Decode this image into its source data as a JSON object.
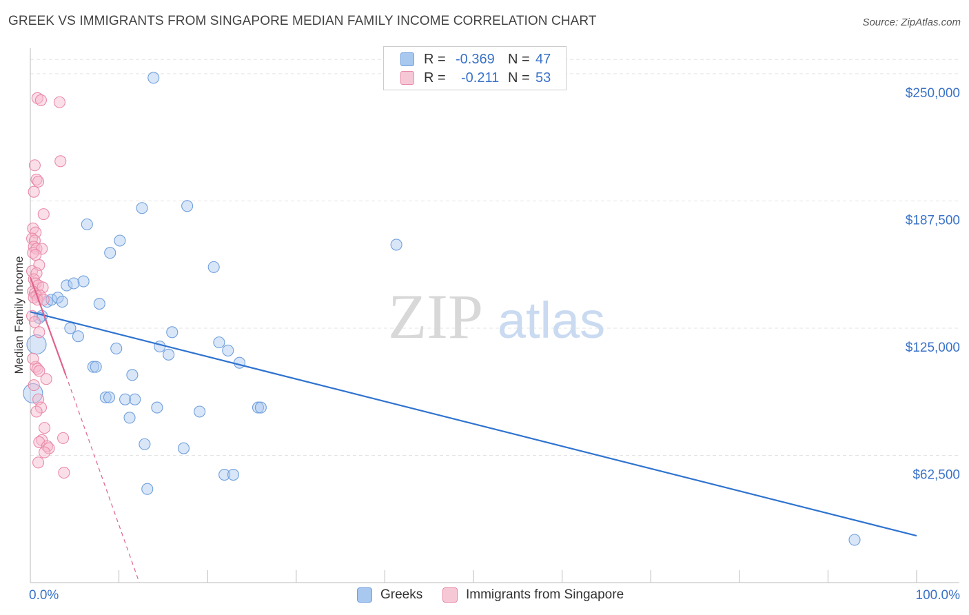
{
  "title": "GREEK VS IMMIGRANTS FROM SINGAPORE MEDIAN FAMILY INCOME CORRELATION CHART",
  "source": "Source: ZipAtlas.com",
  "watermark": {
    "zip": "ZIP",
    "atlas": "atlas"
  },
  "legend": {
    "series": [
      {
        "r_label": "R =",
        "r_value": "-0.369",
        "n_label": "N =",
        "n_value": "47"
      },
      {
        "r_label": "R =",
        "r_value": "-0.211",
        "n_label": "N =",
        "n_value": "53"
      }
    ]
  },
  "bottom_legend": [
    "Greeks",
    "Immigrants from Singapore"
  ],
  "colors": {
    "blue_fill": "#a9c8f0",
    "blue_stroke": "#6f9fdc",
    "blue_line": "#2f73cf",
    "pink_fill": "#f6b8cb",
    "pink_stroke": "#e98aa8",
    "pink_line": "#e0638b",
    "tick_text": "#3a72c8",
    "grid": "#e3e3e3"
  },
  "chart_data": {
    "type": "scatter",
    "title": "GREEK VS IMMIGRANTS FROM SINGAPORE MEDIAN FAMILY INCOME CORRELATION CHART",
    "xlabel": "",
    "ylabel": "Median Family Income",
    "xlim": [
      0,
      100
    ],
    "ylim": [
      0,
      262500
    ],
    "x_tick_labels": [
      "0.0%",
      "100.0%"
    ],
    "y_ticks": [
      62500,
      125000,
      187500,
      250000
    ],
    "y_tick_labels": [
      "$62,500",
      "$125,000",
      "$187,500",
      "$250,000"
    ],
    "grid": true,
    "series": [
      {
        "name": "Greeks",
        "r": -0.369,
        "n": 47,
        "trend": {
          "x": [
            0,
            100
          ],
          "y": [
            133000,
            23000
          ]
        },
        "points": [
          {
            "x": 13.9,
            "y": 248000
          },
          {
            "x": 12.6,
            "y": 184000
          },
          {
            "x": 17.7,
            "y": 185000
          },
          {
            "x": 6.4,
            "y": 176000
          },
          {
            "x": 10.1,
            "y": 168000
          },
          {
            "x": 9.0,
            "y": 162000
          },
          {
            "x": 20.7,
            "y": 155000
          },
          {
            "x": 41.3,
            "y": 166000
          },
          {
            "x": 4.1,
            "y": 146000
          },
          {
            "x": 4.9,
            "y": 147000
          },
          {
            "x": 6.0,
            "y": 148000
          },
          {
            "x": 1.9,
            "y": 138000
          },
          {
            "x": 2.4,
            "y": 139000
          },
          {
            "x": 3.1,
            "y": 140000
          },
          {
            "x": 3.6,
            "y": 138000
          },
          {
            "x": 7.8,
            "y": 137000
          },
          {
            "x": 1.3,
            "y": 131000
          },
          {
            "x": 4.5,
            "y": 125000
          },
          {
            "x": 5.4,
            "y": 121000
          },
          {
            "x": 16.0,
            "y": 123000
          },
          {
            "x": 0.7,
            "y": 117000,
            "big": true
          },
          {
            "x": 9.7,
            "y": 115000
          },
          {
            "x": 14.6,
            "y": 116000
          },
          {
            "x": 21.3,
            "y": 118000
          },
          {
            "x": 22.3,
            "y": 114000
          },
          {
            "x": 15.6,
            "y": 112000
          },
          {
            "x": 23.6,
            "y": 108000
          },
          {
            "x": 7.1,
            "y": 106000
          },
          {
            "x": 7.4,
            "y": 106000
          },
          {
            "x": 11.5,
            "y": 102000
          },
          {
            "x": 0.3,
            "y": 93000,
            "big": true
          },
          {
            "x": 8.5,
            "y": 91000
          },
          {
            "x": 8.9,
            "y": 91000
          },
          {
            "x": 10.7,
            "y": 90000
          },
          {
            "x": 11.8,
            "y": 90000
          },
          {
            "x": 14.3,
            "y": 86000
          },
          {
            "x": 25.7,
            "y": 86000
          },
          {
            "x": 26.0,
            "y": 86000
          },
          {
            "x": 19.1,
            "y": 84000
          },
          {
            "x": 11.2,
            "y": 81000
          },
          {
            "x": 12.9,
            "y": 68000
          },
          {
            "x": 17.3,
            "y": 66000
          },
          {
            "x": 21.9,
            "y": 53000
          },
          {
            "x": 22.9,
            "y": 53000
          },
          {
            "x": 13.2,
            "y": 46000
          },
          {
            "x": 93.0,
            "y": 21000
          },
          {
            "x": 1.0,
            "y": 130000
          }
        ]
      },
      {
        "name": "Immigrants from Singapore",
        "r": -0.211,
        "n": 53,
        "trend": {
          "x": [
            0,
            4.0
          ],
          "y": [
            150000,
            102000
          ]
        },
        "trend_extended": {
          "x": [
            4.0,
            12.3
          ],
          "y": [
            102000,
            0
          ]
        },
        "points": [
          {
            "x": 0.8,
            "y": 238000
          },
          {
            "x": 1.2,
            "y": 237000
          },
          {
            "x": 3.3,
            "y": 236000
          },
          {
            "x": 3.4,
            "y": 207000
          },
          {
            "x": 0.5,
            "y": 205000
          },
          {
            "x": 0.7,
            "y": 198000
          },
          {
            "x": 0.9,
            "y": 197000
          },
          {
            "x": 0.4,
            "y": 192000
          },
          {
            "x": 1.5,
            "y": 181000
          },
          {
            "x": 0.3,
            "y": 174000
          },
          {
            "x": 0.6,
            "y": 172000
          },
          {
            "x": 0.2,
            "y": 169000
          },
          {
            "x": 0.5,
            "y": 168000
          },
          {
            "x": 0.4,
            "y": 165000
          },
          {
            "x": 0.7,
            "y": 164000
          },
          {
            "x": 1.3,
            "y": 164000
          },
          {
            "x": 0.3,
            "y": 162000
          },
          {
            "x": 0.6,
            "y": 161000
          },
          {
            "x": 1.0,
            "y": 156000
          },
          {
            "x": 0.2,
            "y": 153000
          },
          {
            "x": 0.7,
            "y": 152000
          },
          {
            "x": 0.4,
            "y": 149000
          },
          {
            "x": 0.6,
            "y": 147000
          },
          {
            "x": 0.9,
            "y": 146000
          },
          {
            "x": 1.4,
            "y": 145000
          },
          {
            "x": 0.3,
            "y": 143000
          },
          {
            "x": 0.5,
            "y": 142000
          },
          {
            "x": 0.7,
            "y": 141000
          },
          {
            "x": 1.1,
            "y": 141000
          },
          {
            "x": 0.4,
            "y": 140000
          },
          {
            "x": 0.8,
            "y": 139000
          },
          {
            "x": 1.5,
            "y": 139000
          },
          {
            "x": 0.2,
            "y": 131000
          },
          {
            "x": 1.0,
            "y": 123000
          },
          {
            "x": 0.6,
            "y": 106000
          },
          {
            "x": 0.8,
            "y": 105000
          },
          {
            "x": 1.0,
            "y": 104000
          },
          {
            "x": 0.4,
            "y": 97000
          },
          {
            "x": 0.9,
            "y": 90000
          },
          {
            "x": 1.2,
            "y": 86000
          },
          {
            "x": 0.7,
            "y": 84000
          },
          {
            "x": 1.6,
            "y": 76000
          },
          {
            "x": 3.7,
            "y": 71000
          },
          {
            "x": 1.3,
            "y": 70000
          },
          {
            "x": 1.0,
            "y": 69000
          },
          {
            "x": 1.9,
            "y": 67000
          },
          {
            "x": 2.1,
            "y": 66000
          },
          {
            "x": 1.6,
            "y": 64000
          },
          {
            "x": 0.9,
            "y": 59000
          },
          {
            "x": 3.8,
            "y": 54000
          },
          {
            "x": 0.5,
            "y": 128000
          },
          {
            "x": 1.8,
            "y": 100000
          },
          {
            "x": 0.3,
            "y": 110000
          }
        ]
      }
    ]
  }
}
